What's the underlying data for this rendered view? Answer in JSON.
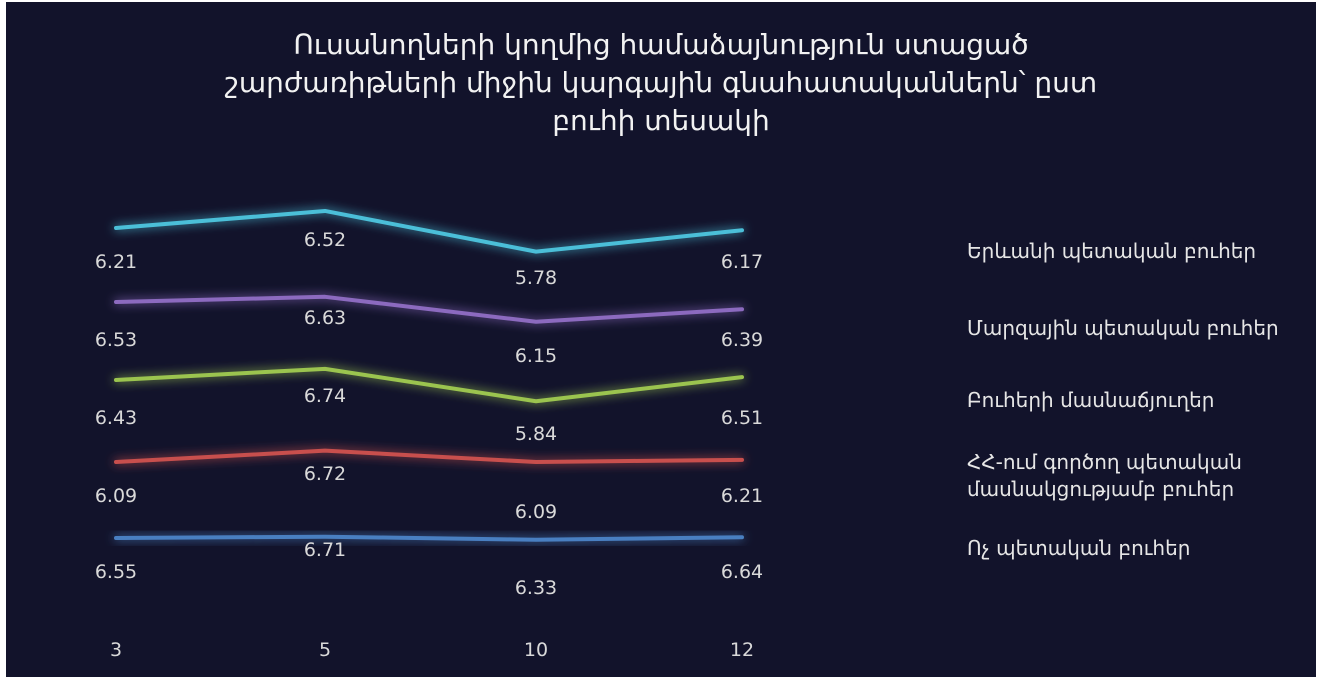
{
  "title_lines": [
    "Ուսանողների կողմից համաձայնություն ստացած",
    "շարժառիթների միջին կարգային գնահատականներն՝ ըստ",
    "բուհի տեսակի"
  ],
  "chart_data": {
    "type": "line",
    "title": "Ուսանողների կողմից համաձայնություն ստացած շարժառիթների միջին կարգային գնահատականներն՝ ըստ բուհի տեսակի",
    "categories": [
      "3",
      "5",
      "10",
      "12"
    ],
    "legend_position": "right",
    "grid": false,
    "series": [
      {
        "name": "Երևանի պետական բուհեր",
        "color": "#4bbfd8",
        "values": [
          6.21,
          6.52,
          5.78,
          6.17
        ]
      },
      {
        "name": "Մարզային պետական բուհեր",
        "color": "#8c6bbf",
        "values": [
          6.53,
          6.63,
          6.15,
          6.39
        ]
      },
      {
        "name": "Բուհերի մասնաճյուղեր",
        "color": "#9bc450",
        "values": [
          6.43,
          6.74,
          5.84,
          6.51
        ]
      },
      {
        "name": "ՀՀ-ում գործող պետական մասնակցությամբ բուհեր",
        "color": "#c8504e",
        "values": [
          6.09,
          6.72,
          6.09,
          6.21
        ]
      },
      {
        "name": "Ոչ պետական բուհեր",
        "color": "#4a7fc1",
        "values": [
          6.55,
          6.71,
          6.33,
          6.64
        ]
      }
    ]
  }
}
